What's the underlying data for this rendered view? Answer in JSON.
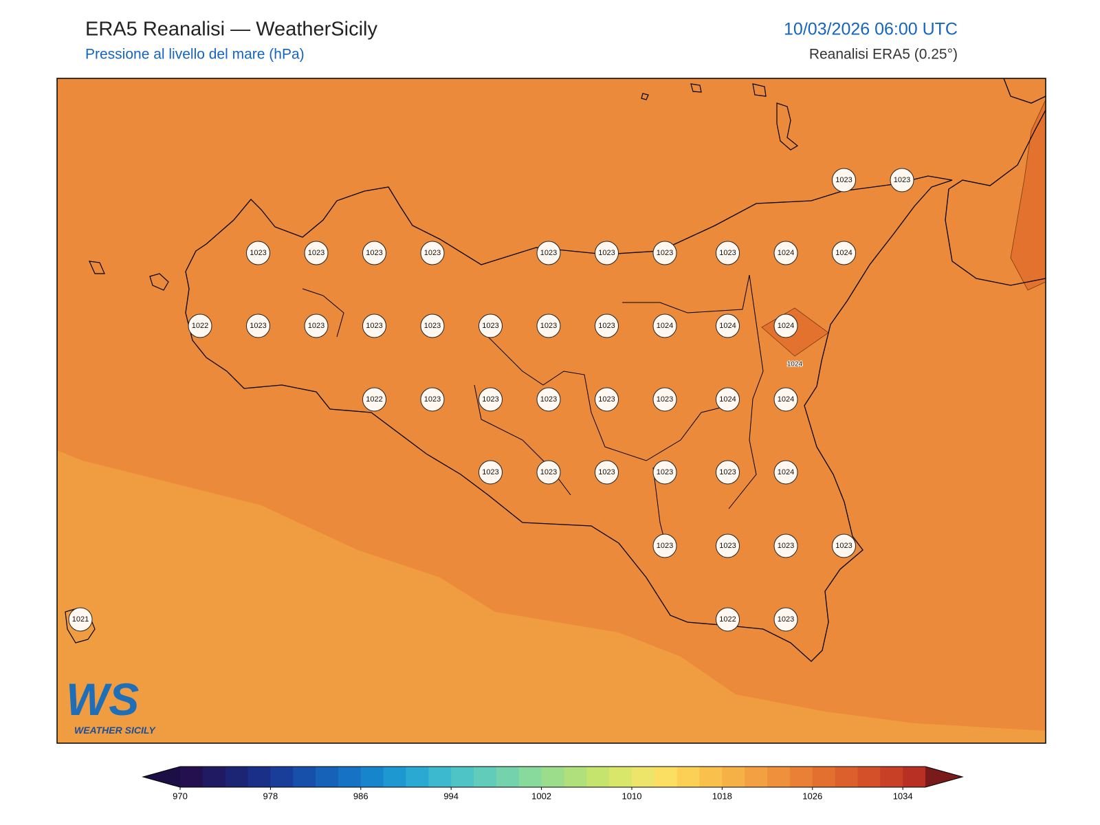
{
  "header": {
    "title": "ERA5 Reanalisi — WeatherSicily",
    "subtitle": "Pressione al livello del mare (hPa)",
    "datetime": "10/03/2026 06:00 UTC",
    "source": "Reanalisi ERA5 (0.25°)"
  },
  "map": {
    "point_labels": [
      1023,
      1023,
      1023,
      1023,
      1023,
      1023,
      1023,
      1023,
      1023,
      1023,
      1024,
      1024,
      1022,
      1023,
      1023,
      1023,
      1023,
      1023,
      1023,
      1023,
      1024,
      1024,
      1024,
      1022,
      1023,
      1023,
      1023,
      1023,
      1023,
      1024,
      1024,
      1023,
      1023,
      1023,
      1023,
      1023,
      1024,
      1023,
      1023,
      1023,
      1023,
      1021,
      1022,
      1023
    ],
    "contour_label": 1024
  },
  "colorbar": {
    "range": [
      970,
      1036
    ],
    "step": 2,
    "ticks": [
      970,
      978,
      986,
      994,
      1002,
      1010,
      1018,
      1026,
      1034
    ],
    "under_color": "#1c0f45",
    "over_color": "#7a1a1a",
    "colors": [
      "#24104f",
      "#1f1a62",
      "#1c2474",
      "#1a3088",
      "#183e9a",
      "#1750aa",
      "#1662b8",
      "#1572c4",
      "#1785cc",
      "#1e98d0",
      "#2aa9d2",
      "#3cb8cf",
      "#4ec4c6",
      "#61ccba",
      "#74d3ac",
      "#88d99c",
      "#9cdd8c",
      "#b0e07c",
      "#c4e46e",
      "#d8e66a",
      "#ece56a",
      "#fbdf62",
      "#fcd055",
      "#f9c04c",
      "#f5b046",
      "#f2a042",
      "#ee903c",
      "#ea8036",
      "#e47030",
      "#dc602c",
      "#d45028",
      "#c84026",
      "#b83024"
    ]
  },
  "logo": {
    "mark": "WS",
    "text": "WEATHER SICILY"
  }
}
